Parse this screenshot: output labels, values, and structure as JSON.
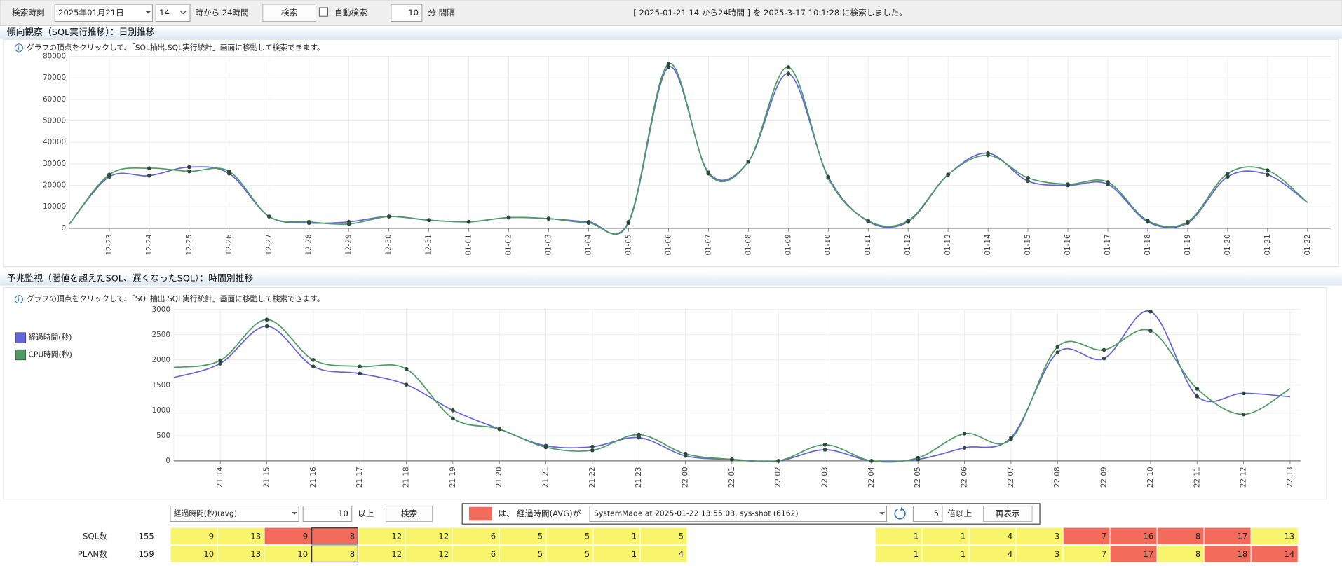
{
  "toolbar": {
    "label": "検索時刻",
    "date": "2025年01月21日",
    "hour": "14",
    "hour_suffix": "時から 24時間",
    "search_button": "検索",
    "auto_search": "自動検索",
    "interval": 10,
    "interval_unit": "分 間隔",
    "status": "[ 2025-01-21 14 から24時間 ] を 2025-3-17 10:1:28 に検索しました。"
  },
  "chart_data": [
    {
      "type": "line",
      "title": "傾向観察（SQL実行推移）：日別推移",
      "note": "グラフの頂点をクリックして、「SQL抽出.SQL実行統計」画面に移動して検索できます。",
      "categories": [
        null,
        "12-23",
        "12-24",
        "12-25",
        "12-26",
        "12-27",
        "12-28",
        "12-29",
        "12-30",
        "12-31",
        "01-01",
        "01-02",
        "01-03",
        "01-04",
        "01-05",
        "01-06",
        "01-07",
        "01-08",
        "01-09",
        "01-10",
        "01-11",
        "01-12",
        "01-13",
        "01-14",
        "01-15",
        "01-16",
        "01-17",
        "01-18",
        "01-19",
        "01-20",
        "01-21",
        "01-22"
      ],
      "series": [
        {
          "color": "#6464dc",
          "values": [
            2000,
            24000,
            24500,
            28500,
            25500,
            5500,
            2500,
            3000,
            5500,
            3800,
            3000,
            5000,
            4500,
            3000,
            2500,
            75000,
            26000,
            31000,
            72000,
            24000,
            3200,
            3000,
            25000,
            35000,
            22000,
            20000,
            20500,
            3000,
            2500,
            24000,
            25000,
            12000
          ]
        },
        {
          "color": "#4f9a62",
          "values": [
            2000,
            25000,
            28000,
            26500,
            26500,
            5500,
            3000,
            2000,
            5500,
            3800,
            3000,
            5000,
            4500,
            2500,
            3000,
            76500,
            25500,
            31000,
            75000,
            23500,
            3500,
            3500,
            25000,
            34000,
            23500,
            20500,
            21500,
            3500,
            3000,
            25500,
            27000,
            12000
          ]
        }
      ],
      "ylim": [
        0,
        80000
      ],
      "yticks": [
        0,
        10000,
        20000,
        30000,
        40000,
        50000,
        60000,
        70000,
        80000
      ],
      "grid": true
    },
    {
      "type": "line",
      "title": "予兆監視（閾値を超えたSQL、遅くなったSQL）：時間別推移",
      "note": "グラフの頂点をクリックして、「SQL抽出.SQL実行統計」画面に移動して検索できます。",
      "categories": [
        null,
        "21 14",
        "21 15",
        "21 16",
        "21 17",
        "21 18",
        "21 19",
        "21 20",
        "21 21",
        "21 22",
        "21 23",
        "22 00",
        "22 01",
        "22 02",
        "22 03",
        "22 04",
        "22 05",
        "22 06",
        "22 07",
        "22 08",
        "22 09",
        "22 10",
        "22 11",
        "22 12",
        "22 13"
      ],
      "series": [
        {
          "name": "経過時間(秒)",
          "color": "#6464dc",
          "values": [
            1650,
            1930,
            2670,
            1870,
            1730,
            1510,
            1000,
            630,
            300,
            280,
            460,
            100,
            30,
            0,
            220,
            0,
            30,
            260,
            460,
            2150,
            2030,
            2960,
            1280,
            1340,
            1270
          ]
        },
        {
          "name": "CPU時間(秒)",
          "color": "#4f9a62",
          "values": [
            1850,
            1990,
            2800,
            2000,
            1870,
            1820,
            840,
            630,
            270,
            210,
            520,
            140,
            30,
            0,
            320,
            0,
            60,
            540,
            430,
            2260,
            2200,
            2580,
            1430,
            920,
            1430
          ]
        }
      ],
      "ylim": [
        0,
        3000
      ],
      "yticks": [
        0,
        500,
        1000,
        1500,
        2000,
        2500,
        3000
      ],
      "grid": true,
      "legend": "left"
    }
  ],
  "controls": {
    "metric": "経過時間(秒)(avg)",
    "threshold": 10,
    "threshold_suffix": "以上",
    "search_button": "検索",
    "legend_color": "#f26b5b",
    "condition": "は、 経過時間(AVG)が",
    "snapshot": "SystemMade at 2025-01-22 13:55:03, sys-shot (6162)",
    "ratio": 5,
    "ratio_suffix": "倍以上",
    "redisplay_button": "再表示"
  },
  "table": {
    "selected": 3,
    "rows": [
      {
        "label": "SQL数",
        "total": 155,
        "values": [
          9,
          13,
          9,
          8,
          12,
          12,
          6,
          5,
          5,
          1,
          5,
          null,
          null,
          null,
          null,
          1,
          1,
          4,
          3,
          7,
          16,
          8,
          17,
          13
        ],
        "colors": [
          "#f8f46c",
          "#f8f46c",
          "#f26b5b",
          "#f26b5b",
          "#f8f46c",
          "#f8f46c",
          "#f8f46c",
          "#f8f46c",
          "#f8f46c",
          "#f8f46c",
          "#f8f46c",
          "#ffffff",
          "#ffffff",
          "#ffffff",
          "#ffffff",
          "#f8f46c",
          "#f8f46c",
          "#f8f46c",
          "#f8f46c",
          "#f26b5b",
          "#f26b5b",
          "#f26b5b",
          "#f26b5b",
          "#f8f46c"
        ]
      },
      {
        "label": "PLAN数",
        "total": 159,
        "values": [
          10,
          13,
          10,
          8,
          12,
          12,
          6,
          5,
          5,
          1,
          4,
          null,
          null,
          null,
          null,
          1,
          1,
          4,
          3,
          7,
          17,
          8,
          18,
          14
        ],
        "colors": [
          "#f8f46c",
          "#f8f46c",
          "#f8f46c",
          "#f8f46c",
          "#f8f46c",
          "#f8f46c",
          "#f8f46c",
          "#f8f46c",
          "#f8f46c",
          "#f8f46c",
          "#f8f46c",
          "#ffffff",
          "#ffffff",
          "#ffffff",
          "#ffffff",
          "#f8f46c",
          "#f8f46c",
          "#f8f46c",
          "#f8f46c",
          "#f8f46c",
          "#f26b5b",
          "#f8f46c",
          "#f26b5b",
          "#f26b5b"
        ]
      }
    ]
  }
}
